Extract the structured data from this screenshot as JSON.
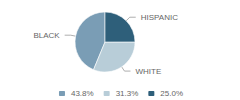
{
  "chart_data": {
    "type": "pie",
    "categories": [
      "BLACK",
      "WHITE",
      "HISPANIC"
    ],
    "values": [
      43.8,
      31.3,
      25.0
    ],
    "value_labels": [
      "43.8%",
      "31.3%",
      "25.0%"
    ],
    "colors": [
      "#7a9db5",
      "#b8cdd8",
      "#2e5f7a"
    ],
    "legend": "bottom"
  }
}
